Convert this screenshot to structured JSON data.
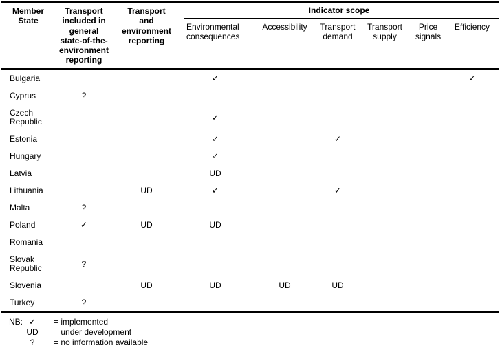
{
  "table": {
    "columns": {
      "member_state": "Member\nState",
      "transport_included": "Transport\nincluded in\ngeneral\nstate-of-the-\nenvironment\nreporting",
      "transport_env_reporting": "Transport\nand\nenvironment\nreporting",
      "indicator_scope": "Indicator scope",
      "indicator_columns": [
        "Environmental consequences",
        "Accessibility",
        "Transport demand",
        "Transport supply",
        "Price signals",
        "Efficiency"
      ]
    },
    "rows": [
      {
        "state": "Bulgaria",
        "transport_included": "",
        "transport_env_reporting": "",
        "indicators": [
          "✓",
          "",
          "",
          "",
          "",
          "✓"
        ]
      },
      {
        "state": "Cyprus",
        "transport_included": "?",
        "transport_env_reporting": "",
        "indicators": [
          "",
          "",
          "",
          "",
          "",
          ""
        ]
      },
      {
        "state": "Czech Republic",
        "transport_included": "",
        "transport_env_reporting": "",
        "indicators": [
          "✓",
          "",
          "",
          "",
          "",
          ""
        ]
      },
      {
        "state": "Estonia",
        "transport_included": "",
        "transport_env_reporting": "",
        "indicators": [
          "✓",
          "",
          "✓",
          "",
          "",
          ""
        ]
      },
      {
        "state": "Hungary",
        "transport_included": "",
        "transport_env_reporting": "",
        "indicators": [
          "✓",
          "",
          "",
          "",
          "",
          ""
        ]
      },
      {
        "state": "Latvia",
        "transport_included": "",
        "transport_env_reporting": "",
        "indicators": [
          "UD",
          "",
          "",
          "",
          "",
          ""
        ]
      },
      {
        "state": "Lithuania",
        "transport_included": "",
        "transport_env_reporting": "UD",
        "indicators": [
          "✓",
          "",
          "✓",
          "",
          "",
          ""
        ]
      },
      {
        "state": "Malta",
        "transport_included": "?",
        "transport_env_reporting": "",
        "indicators": [
          "",
          "",
          "",
          "",
          "",
          ""
        ]
      },
      {
        "state": "Poland",
        "transport_included": "✓",
        "transport_env_reporting": "UD",
        "indicators": [
          "UD",
          "",
          "",
          "",
          "",
          ""
        ]
      },
      {
        "state": "Romania",
        "transport_included": "",
        "transport_env_reporting": "",
        "indicators": [
          "",
          "",
          "",
          "",
          "",
          ""
        ]
      },
      {
        "state": "Slovak Republic",
        "transport_included": "?",
        "transport_env_reporting": "",
        "indicators": [
          "",
          "",
          "",
          "",
          "",
          ""
        ]
      },
      {
        "state": "Slovenia",
        "transport_included": "",
        "transport_env_reporting": "UD",
        "indicators": [
          "UD",
          "UD",
          "UD",
          "",
          "",
          ""
        ]
      },
      {
        "state": "Turkey",
        "transport_included": "?",
        "transport_env_reporting": "",
        "indicators": [
          "",
          "",
          "",
          "",
          "",
          ""
        ]
      }
    ]
  },
  "legend": {
    "prefix": "NB:",
    "items": [
      {
        "symbol": "✓",
        "meaning": "= implemented"
      },
      {
        "symbol": "UD",
        "meaning": "= under development"
      },
      {
        "symbol": "?",
        "meaning": "= no information available"
      }
    ]
  }
}
